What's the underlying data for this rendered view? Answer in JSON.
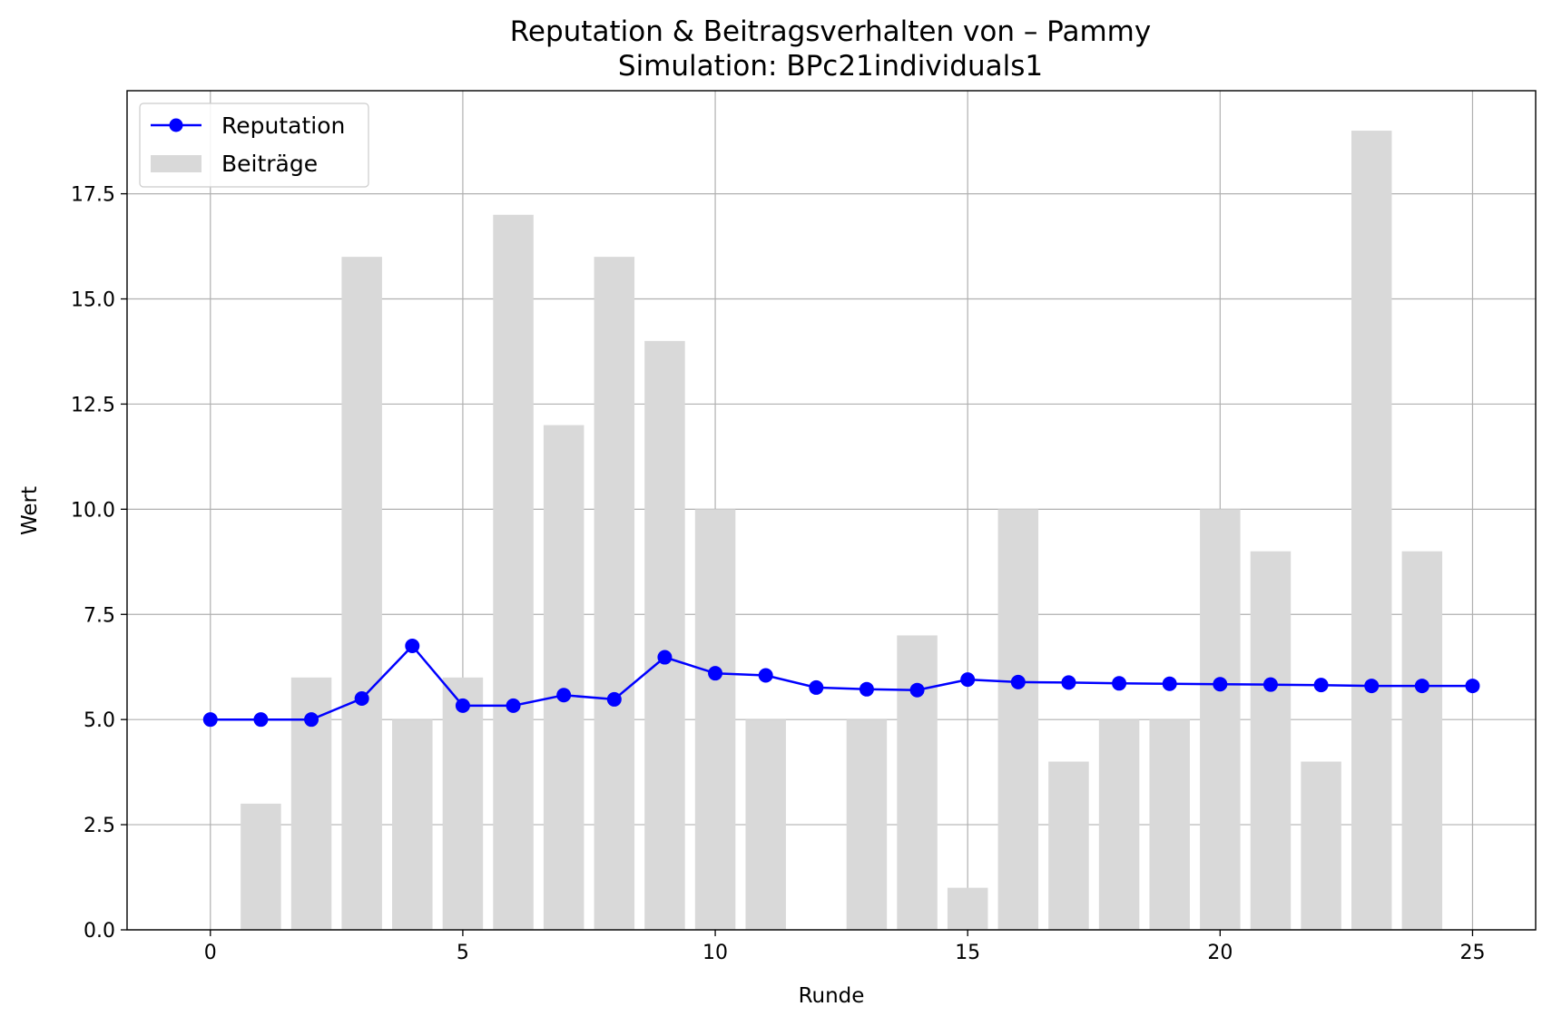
{
  "chart_data": {
    "type": "bar+line",
    "title": "Reputation & Beitragsverhalten von – Pammy",
    "subtitle": "Simulation: BPc21individuals1",
    "xlabel": "Runde",
    "ylabel": "Wert",
    "xlim": [
      -1.65,
      26.25
    ],
    "ylim": [
      0,
      19.95
    ],
    "xticks": [
      "0",
      "5",
      "10",
      "15",
      "20",
      "25"
    ],
    "yticks": [
      "0.0",
      "2.5",
      "5.0",
      "7.5",
      "10.0",
      "12.5",
      "15.0",
      "17.5"
    ],
    "grid": true,
    "legend_position": "top-left",
    "series": [
      {
        "name": "Reputation",
        "kind": "line",
        "marker": "circle",
        "color": "#0000ff",
        "x": [
          0,
          1,
          2,
          3,
          4,
          5,
          6,
          7,
          8,
          9,
          10,
          11,
          12,
          13,
          14,
          15,
          16,
          17,
          18,
          19,
          20,
          21,
          22,
          23,
          24,
          25
        ],
        "values": [
          5.0,
          5.0,
          5.0,
          5.5,
          6.75,
          5.33,
          5.33,
          5.58,
          5.48,
          6.48,
          6.1,
          6.05,
          5.76,
          5.72,
          5.7,
          5.95,
          5.89,
          5.88,
          5.86,
          5.85,
          5.84,
          5.83,
          5.82,
          5.8,
          5.8,
          5.8
        ]
      },
      {
        "name": "Beiträge",
        "kind": "bar",
        "color": "#d9d9d9",
        "x": [
          1,
          2,
          3,
          4,
          5,
          6,
          7,
          8,
          9,
          10,
          11,
          12,
          13,
          14,
          15,
          16,
          17,
          18,
          19,
          20,
          21,
          22,
          23,
          24
        ],
        "values": [
          3,
          6,
          16,
          5,
          6,
          17,
          12,
          16,
          14,
          10,
          5,
          0,
          5,
          7,
          1,
          10,
          4,
          5,
          5,
          10,
          9,
          4,
          19,
          9
        ]
      }
    ]
  }
}
